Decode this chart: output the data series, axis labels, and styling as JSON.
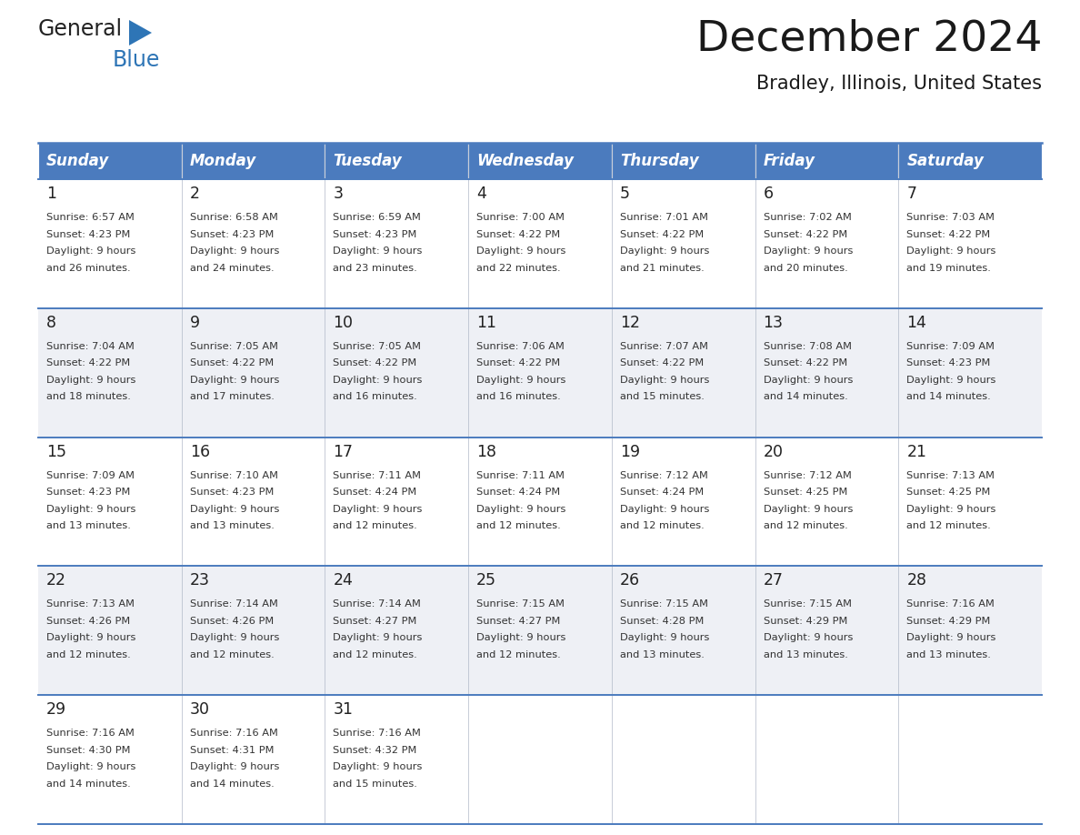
{
  "title": "December 2024",
  "subtitle": "Bradley, Illinois, United States",
  "header_color": "#4B7BBE",
  "header_text_color": "#FFFFFF",
  "days_of_week": [
    "Sunday",
    "Monday",
    "Tuesday",
    "Wednesday",
    "Thursday",
    "Friday",
    "Saturday"
  ],
  "cell_bg_even": "#FFFFFF",
  "cell_bg_odd": "#EEF0F5",
  "border_color": "#4B7BBE",
  "day_number_color": "#222222",
  "text_color": "#333333",
  "calendar_data": [
    [
      {
        "day": 1,
        "sunrise": "6:57 AM",
        "sunset": "4:23 PM",
        "daylight": "9 hours and 26 minutes."
      },
      {
        "day": 2,
        "sunrise": "6:58 AM",
        "sunset": "4:23 PM",
        "daylight": "9 hours and 24 minutes."
      },
      {
        "day": 3,
        "sunrise": "6:59 AM",
        "sunset": "4:23 PM",
        "daylight": "9 hours and 23 minutes."
      },
      {
        "day": 4,
        "sunrise": "7:00 AM",
        "sunset": "4:22 PM",
        "daylight": "9 hours and 22 minutes."
      },
      {
        "day": 5,
        "sunrise": "7:01 AM",
        "sunset": "4:22 PM",
        "daylight": "9 hours and 21 minutes."
      },
      {
        "day": 6,
        "sunrise": "7:02 AM",
        "sunset": "4:22 PM",
        "daylight": "9 hours and 20 minutes."
      },
      {
        "day": 7,
        "sunrise": "7:03 AM",
        "sunset": "4:22 PM",
        "daylight": "9 hours and 19 minutes."
      }
    ],
    [
      {
        "day": 8,
        "sunrise": "7:04 AM",
        "sunset": "4:22 PM",
        "daylight": "9 hours and 18 minutes."
      },
      {
        "day": 9,
        "sunrise": "7:05 AM",
        "sunset": "4:22 PM",
        "daylight": "9 hours and 17 minutes."
      },
      {
        "day": 10,
        "sunrise": "7:05 AM",
        "sunset": "4:22 PM",
        "daylight": "9 hours and 16 minutes."
      },
      {
        "day": 11,
        "sunrise": "7:06 AM",
        "sunset": "4:22 PM",
        "daylight": "9 hours and 16 minutes."
      },
      {
        "day": 12,
        "sunrise": "7:07 AM",
        "sunset": "4:22 PM",
        "daylight": "9 hours and 15 minutes."
      },
      {
        "day": 13,
        "sunrise": "7:08 AM",
        "sunset": "4:22 PM",
        "daylight": "9 hours and 14 minutes."
      },
      {
        "day": 14,
        "sunrise": "7:09 AM",
        "sunset": "4:23 PM",
        "daylight": "9 hours and 14 minutes."
      }
    ],
    [
      {
        "day": 15,
        "sunrise": "7:09 AM",
        "sunset": "4:23 PM",
        "daylight": "9 hours and 13 minutes."
      },
      {
        "day": 16,
        "sunrise": "7:10 AM",
        "sunset": "4:23 PM",
        "daylight": "9 hours and 13 minutes."
      },
      {
        "day": 17,
        "sunrise": "7:11 AM",
        "sunset": "4:24 PM",
        "daylight": "9 hours and 12 minutes."
      },
      {
        "day": 18,
        "sunrise": "7:11 AM",
        "sunset": "4:24 PM",
        "daylight": "9 hours and 12 minutes."
      },
      {
        "day": 19,
        "sunrise": "7:12 AM",
        "sunset": "4:24 PM",
        "daylight": "9 hours and 12 minutes."
      },
      {
        "day": 20,
        "sunrise": "7:12 AM",
        "sunset": "4:25 PM",
        "daylight": "9 hours and 12 minutes."
      },
      {
        "day": 21,
        "sunrise": "7:13 AM",
        "sunset": "4:25 PM",
        "daylight": "9 hours and 12 minutes."
      }
    ],
    [
      {
        "day": 22,
        "sunrise": "7:13 AM",
        "sunset": "4:26 PM",
        "daylight": "9 hours and 12 minutes."
      },
      {
        "day": 23,
        "sunrise": "7:14 AM",
        "sunset": "4:26 PM",
        "daylight": "9 hours and 12 minutes."
      },
      {
        "day": 24,
        "sunrise": "7:14 AM",
        "sunset": "4:27 PM",
        "daylight": "9 hours and 12 minutes."
      },
      {
        "day": 25,
        "sunrise": "7:15 AM",
        "sunset": "4:27 PM",
        "daylight": "9 hours and 12 minutes."
      },
      {
        "day": 26,
        "sunrise": "7:15 AM",
        "sunset": "4:28 PM",
        "daylight": "9 hours and 13 minutes."
      },
      {
        "day": 27,
        "sunrise": "7:15 AM",
        "sunset": "4:29 PM",
        "daylight": "9 hours and 13 minutes."
      },
      {
        "day": 28,
        "sunrise": "7:16 AM",
        "sunset": "4:29 PM",
        "daylight": "9 hours and 13 minutes."
      }
    ],
    [
      {
        "day": 29,
        "sunrise": "7:16 AM",
        "sunset": "4:30 PM",
        "daylight": "9 hours and 14 minutes."
      },
      {
        "day": 30,
        "sunrise": "7:16 AM",
        "sunset": "4:31 PM",
        "daylight": "9 hours and 14 minutes."
      },
      {
        "day": 31,
        "sunrise": "7:16 AM",
        "sunset": "4:32 PM",
        "daylight": "9 hours and 15 minutes."
      },
      null,
      null,
      null,
      null
    ]
  ]
}
